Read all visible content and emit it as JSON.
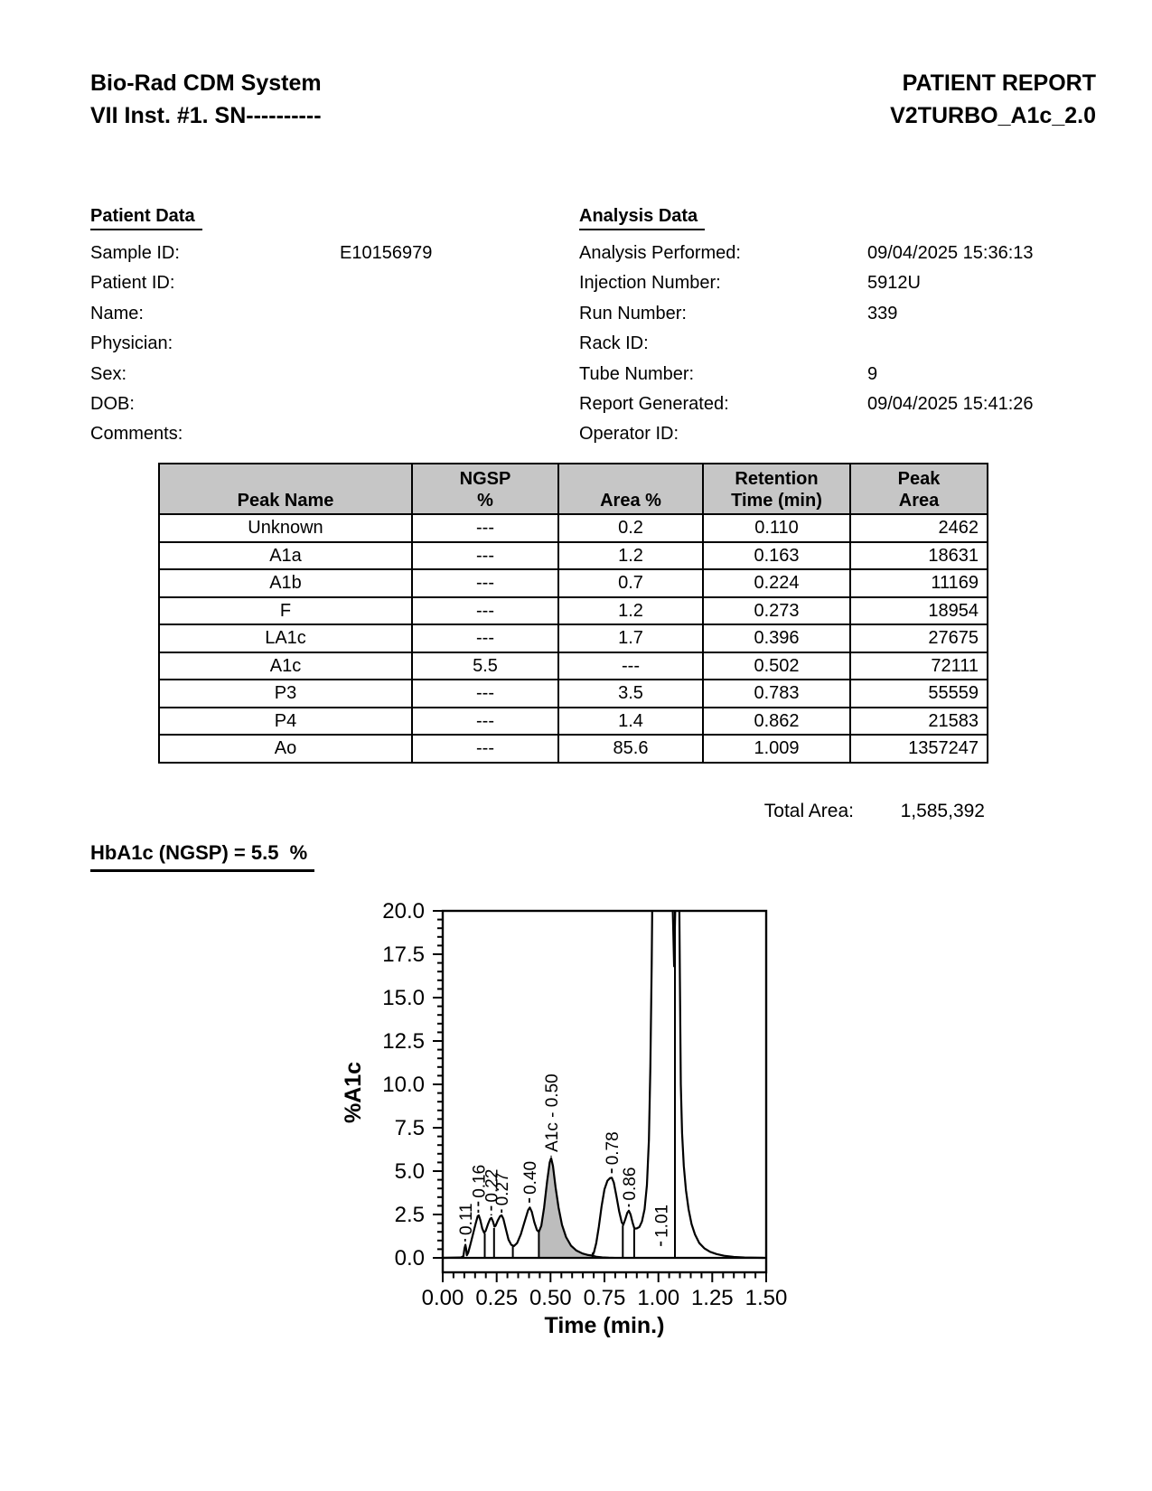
{
  "header": {
    "system_title": "Bio-Rad CDM System",
    "system_subtitle": "VII Inst. #1. SN----------",
    "report_title": "PATIENT REPORT",
    "report_method": "V2TURBO_A1c_2.0"
  },
  "patient_data": {
    "heading": "Patient Data",
    "fields": [
      {
        "label": "Sample ID:",
        "value": "E10156979"
      },
      {
        "label": "Patient ID:",
        "value": ""
      },
      {
        "label": "Name:",
        "value": ""
      },
      {
        "label": "Physician:",
        "value": ""
      },
      {
        "label": "Sex:",
        "value": ""
      },
      {
        "label": "DOB:",
        "value": ""
      },
      {
        "label": "Comments:",
        "value": ""
      }
    ]
  },
  "analysis_data": {
    "heading": "Analysis Data",
    "fields": [
      {
        "label": "Analysis Performed:",
        "value": "09/04/2025 15:36:13"
      },
      {
        "label": "Injection Number:",
        "value": "5912U"
      },
      {
        "label": "Run Number:",
        "value": "339"
      },
      {
        "label": "Rack ID:",
        "value": ""
      },
      {
        "label": "Tube Number:",
        "value": "9"
      },
      {
        "label": "Report Generated:",
        "value": "09/04/2025 15:41:26"
      },
      {
        "label": "Operator ID:",
        "value": ""
      }
    ]
  },
  "peak_table": {
    "columns": [
      {
        "l1": "",
        "l2": "Peak Name"
      },
      {
        "l1": "NGSP",
        "l2": "%"
      },
      {
        "l1": "",
        "l2": "Area %"
      },
      {
        "l1": "Retention",
        "l2": "Time (min)"
      },
      {
        "l1": "Peak",
        "l2": "Area"
      }
    ],
    "rows": [
      {
        "name": "Unknown",
        "ngsp": "---",
        "area_pct": "0.2",
        "retention": "0.110",
        "peak_area": "2462"
      },
      {
        "name": "A1a",
        "ngsp": "---",
        "area_pct": "1.2",
        "retention": "0.163",
        "peak_area": "18631"
      },
      {
        "name": "A1b",
        "ngsp": "---",
        "area_pct": "0.7",
        "retention": "0.224",
        "peak_area": "11169"
      },
      {
        "name": "F",
        "ngsp": "---",
        "area_pct": "1.2",
        "retention": "0.273",
        "peak_area": "18954"
      },
      {
        "name": "LA1c",
        "ngsp": "---",
        "area_pct": "1.7",
        "retention": "0.396",
        "peak_area": "27675"
      },
      {
        "name": "A1c",
        "ngsp": "5.5",
        "area_pct": "---",
        "retention": "0.502",
        "peak_area": "72111"
      },
      {
        "name": "P3",
        "ngsp": "---",
        "area_pct": "3.5",
        "retention": "0.783",
        "peak_area": "55559"
      },
      {
        "name": "P4",
        "ngsp": "---",
        "area_pct": "1.4",
        "retention": "0.862",
        "peak_area": "21583"
      },
      {
        "name": "Ao",
        "ngsp": "---",
        "area_pct": "85.6",
        "retention": "1.009",
        "peak_area": "1357247"
      }
    ]
  },
  "total_area": {
    "label": "Total Area:",
    "value": "1,585,392"
  },
  "result": {
    "text": "HbA1c (NGSP) = 5.5  %"
  },
  "chart_data": {
    "type": "line",
    "title": "",
    "xlabel": "Time (min.)",
    "ylabel": "%A1c",
    "xlim": [
      0,
      1.5
    ],
    "ylim": [
      0,
      20
    ],
    "x_tick_labels": [
      "0.00",
      "0.25",
      "0.50",
      "0.75",
      "1.00",
      "1.25",
      "1.50"
    ],
    "y_tick_labels": [
      "0.0",
      "2.5",
      "5.0",
      "7.5",
      "10.0",
      "12.5",
      "15.0",
      "17.5",
      "20.0"
    ],
    "x_minor_per_major": 5,
    "y_minor_per_major": 5,
    "grid": "off",
    "shaded_peak": "A1c",
    "fill_color": "#bdbdbd",
    "peaks": [
      {
        "name": "Unknown",
        "rt": 0.11,
        "height_pct": 0.75
      },
      {
        "name": "A1a",
        "rt": 0.163,
        "height_pct": 2.45
      },
      {
        "name": "A1b",
        "rt": 0.224,
        "height_pct": 2.3
      },
      {
        "name": "F",
        "rt": 0.273,
        "height_pct": 2.45
      },
      {
        "name": "LA1c",
        "rt": 0.396,
        "height_pct": 2.9
      },
      {
        "name": "A1c",
        "rt": 0.502,
        "height_pct": 5.75,
        "shaded": true
      },
      {
        "name": "P3",
        "rt": 0.783,
        "height_pct": 4.6
      },
      {
        "name": "P4",
        "rt": 0.862,
        "height_pct": 2.75
      },
      {
        "name": "Ao",
        "rt": 1.009,
        "height_pct": 20,
        "off_scale": true
      }
    ],
    "peak_labels": [
      {
        "text": "0.11",
        "t": 0.104,
        "text_bottom": 1.3,
        "dash_to": 0.95
      },
      {
        "text": "0.16",
        "t": 0.165,
        "text_bottom": 3.45,
        "dash_to": 2.6
      },
      {
        "text": "0.22",
        "t": 0.225,
        "text_bottom": 3.2,
        "dash_to": 2.45
      },
      {
        "text": "0.27",
        "t": 0.273,
        "text_bottom": 3.0,
        "dash_to": 2.6
      },
      {
        "text": "0.40",
        "t": 0.402,
        "text_bottom": 3.65,
        "dash_to": 3.05
      },
      {
        "text": "A1c  -  0.50",
        "t": 0.503,
        "text_bottom": 6.1,
        "dash_to": 5.85
      },
      {
        "text": "0.78",
        "t": 0.784,
        "text_bottom": 5.35,
        "dash_to": 4.8
      },
      {
        "text": "0.86",
        "t": 0.863,
        "text_bottom": 3.3,
        "dash_to": 2.95
      },
      {
        "text": "1.01",
        "t": 1.012,
        "text_bottom": 1.15,
        "dash_to": 0.55
      }
    ],
    "curve": [
      [
        0,
        0
      ],
      [
        0.085,
        0.02
      ],
      [
        0.096,
        0.1
      ],
      [
        0.101,
        0.55
      ],
      [
        0.105,
        0.75
      ],
      [
        0.109,
        0.5
      ],
      [
        0.112,
        0.15
      ],
      [
        0.118,
        0.3
      ],
      [
        0.128,
        0.75
      ],
      [
        0.14,
        1.35
      ],
      [
        0.152,
        1.95
      ],
      [
        0.162,
        2.4
      ],
      [
        0.167,
        2.45
      ],
      [
        0.174,
        2.2
      ],
      [
        0.183,
        1.7
      ],
      [
        0.192,
        1.45
      ],
      [
        0.199,
        1.55
      ],
      [
        0.21,
        1.95
      ],
      [
        0.22,
        2.25
      ],
      [
        0.226,
        2.3
      ],
      [
        0.233,
        2.1
      ],
      [
        0.24,
        1.8
      ],
      [
        0.245,
        1.85
      ],
      [
        0.255,
        2.15
      ],
      [
        0.266,
        2.4
      ],
      [
        0.273,
        2.45
      ],
      [
        0.281,
        2.25
      ],
      [
        0.292,
        1.7
      ],
      [
        0.305,
        1.05
      ],
      [
        0.318,
        0.75
      ],
      [
        0.33,
        0.68
      ],
      [
        0.345,
        0.85
      ],
      [
        0.362,
        1.35
      ],
      [
        0.38,
        2.1
      ],
      [
        0.396,
        2.75
      ],
      [
        0.404,
        2.9
      ],
      [
        0.413,
        2.65
      ],
      [
        0.425,
        2.05
      ],
      [
        0.437,
        1.6
      ],
      [
        0.446,
        1.5
      ],
      [
        0.457,
        1.85
      ],
      [
        0.47,
        2.9
      ],
      [
        0.484,
        4.4
      ],
      [
        0.496,
        5.5
      ],
      [
        0.503,
        5.75
      ],
      [
        0.511,
        5.3
      ],
      [
        0.523,
        4.1
      ],
      [
        0.537,
        2.9
      ],
      [
        0.553,
        1.9
      ],
      [
        0.572,
        1.2
      ],
      [
        0.595,
        0.7
      ],
      [
        0.62,
        0.42
      ],
      [
        0.648,
        0.25
      ],
      [
        0.675,
        0.16
      ],
      [
        0.695,
        0.13
      ],
      [
        0.702,
        0.35
      ],
      [
        0.712,
        0.85
      ],
      [
        0.724,
        1.8
      ],
      [
        0.737,
        3.0
      ],
      [
        0.75,
        3.95
      ],
      [
        0.764,
        4.45
      ],
      [
        0.776,
        4.6
      ],
      [
        0.784,
        4.62
      ],
      [
        0.793,
        4.35
      ],
      [
        0.805,
        3.6
      ],
      [
        0.818,
        2.7
      ],
      [
        0.83,
        2.05
      ],
      [
        0.837,
        1.9
      ],
      [
        0.846,
        2.2
      ],
      [
        0.856,
        2.6
      ],
      [
        0.863,
        2.72
      ],
      [
        0.871,
        2.5
      ],
      [
        0.881,
        2.0
      ],
      [
        0.889,
        1.68
      ],
      [
        0.9,
        1.7
      ],
      [
        0.912,
        1.78
      ],
      [
        0.924,
        2.1
      ],
      [
        0.936,
        2.8
      ],
      [
        0.947,
        4.2
      ],
      [
        0.956,
        6.8
      ],
      [
        0.963,
        11
      ],
      [
        0.969,
        17
      ],
      [
        0.973,
        22
      ],
      [
        1.05,
        22
      ],
      [
        1.06,
        21
      ],
      [
        1.066,
        20.5
      ],
      [
        1.073,
        16.8
      ],
      [
        1.079,
        20.5
      ],
      [
        1.084,
        22
      ],
      [
        1.096,
        22
      ],
      [
        1.1,
        16
      ],
      [
        1.104,
        10
      ],
      [
        1.11,
        7.2
      ],
      [
        1.118,
        5.3
      ],
      [
        1.128,
        3.9
      ],
      [
        1.14,
        2.8
      ],
      [
        1.154,
        1.95
      ],
      [
        1.17,
        1.35
      ],
      [
        1.19,
        0.85
      ],
      [
        1.213,
        0.55
      ],
      [
        1.24,
        0.35
      ],
      [
        1.27,
        0.22
      ],
      [
        1.305,
        0.12
      ],
      [
        1.35,
        0.05
      ],
      [
        1.4,
        0.02
      ],
      [
        1.49,
        0
      ]
    ],
    "a1c_fill_range": [
      0.446,
      0.695
    ],
    "tail_curve": [
      [
        0.695,
        0.13
      ],
      [
        0.715,
        0.07
      ],
      [
        0.74,
        0.035
      ],
      [
        0.77,
        0.015
      ],
      [
        0.8,
        0.005
      ],
      [
        0.825,
        0
      ]
    ],
    "drop_lines": [
      [
        0.195,
        1.42
      ],
      [
        0.238,
        1.72
      ],
      [
        0.325,
        0.68
      ],
      [
        0.446,
        1.5
      ],
      [
        0.695,
        0.3
      ],
      [
        0.835,
        1.87
      ],
      [
        0.888,
        1.65
      ],
      [
        1.077,
        20
      ]
    ]
  }
}
